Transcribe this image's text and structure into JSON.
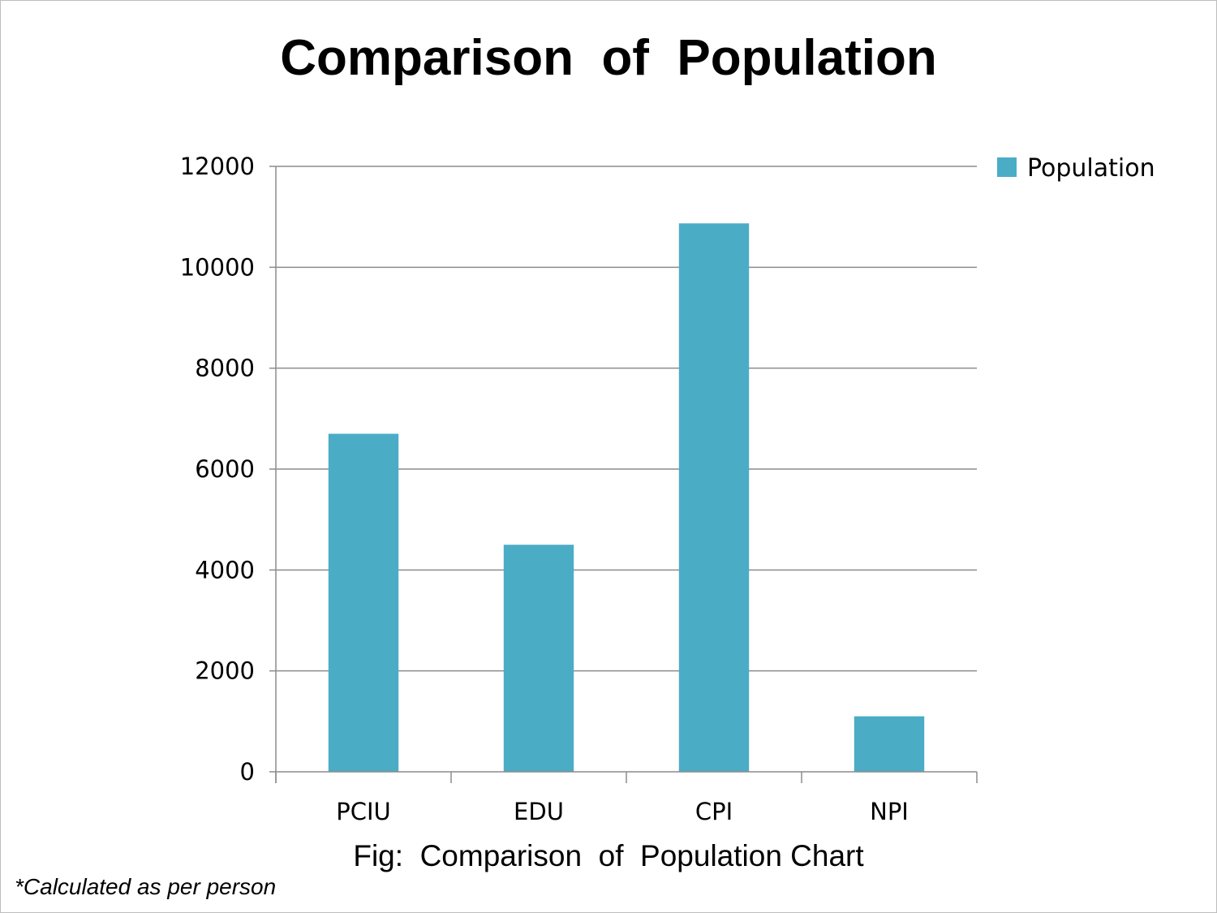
{
  "chart_data": {
    "type": "bar",
    "title": "Comparison  of  Population",
    "categories": [
      "PCIU",
      "EDU",
      "CPI",
      "NPI"
    ],
    "series": [
      {
        "name": "Population",
        "values": [
          6700,
          4500,
          10870,
          1100
        ]
      }
    ],
    "ylim": [
      0,
      12000
    ],
    "yticks": [
      0,
      2000,
      4000,
      6000,
      8000,
      10000,
      12000
    ],
    "grid": true,
    "legend_position": "top-right",
    "bar_color": "#4BACC6",
    "caption": "Fig:  Comparison  of  Population Chart",
    "footnote": "*Calculated as per person"
  }
}
